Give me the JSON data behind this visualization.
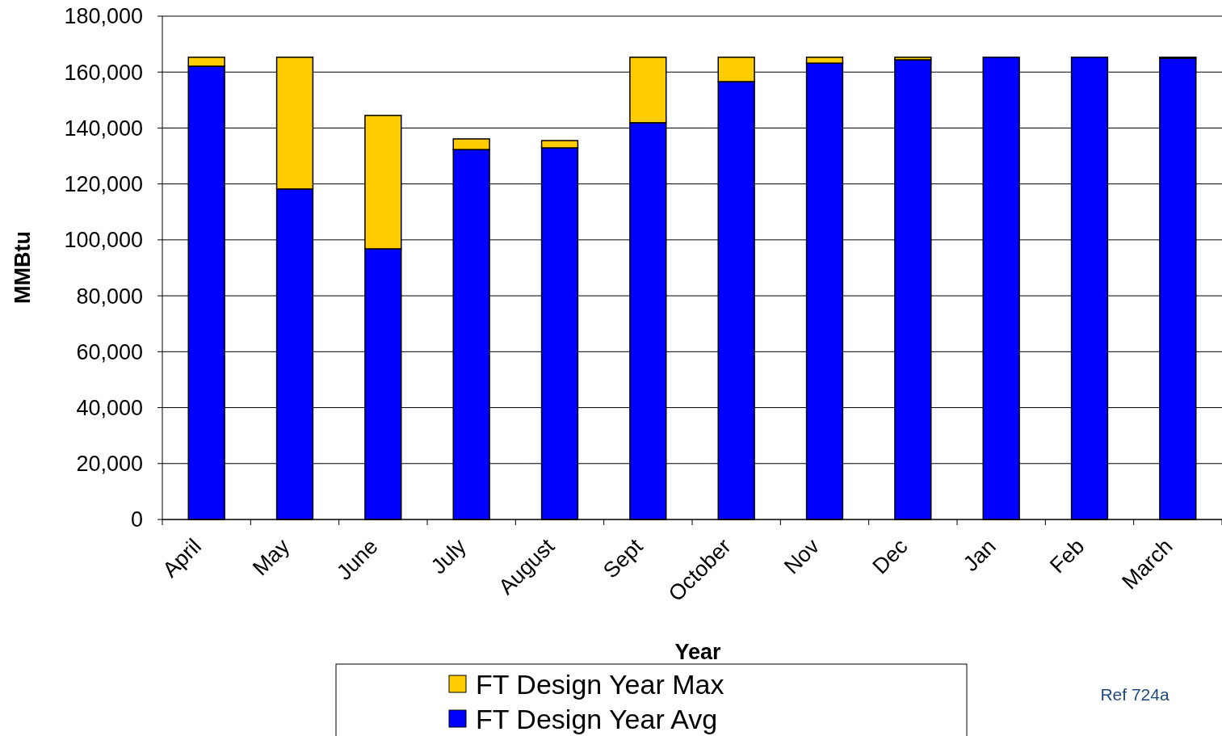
{
  "chart_data": {
    "type": "bar",
    "stacked": true,
    "xlabel": "Year",
    "ylabel": "MMBtu",
    "categories": [
      "April",
      "May",
      "June",
      "July",
      "August",
      "Sept",
      "October",
      "Nov",
      "Dec",
      "Jan",
      "Feb",
      "March"
    ],
    "series": [
      {
        "name": "FT Design Year Avg",
        "color": "#0000ff",
        "values": [
          162100,
          118200,
          96800,
          132300,
          132900,
          141900,
          156600,
          163200,
          164400,
          165300,
          165300,
          165000
        ]
      },
      {
        "name": "FT Design Year Max",
        "color": "#ffcc00",
        "values": [
          3200,
          47100,
          47700,
          3800,
          2600,
          23400,
          8700,
          2100,
          900,
          0,
          0,
          300
        ]
      }
    ],
    "ylim": [
      0,
      180000
    ],
    "yticks": [
      {
        "value": 0,
        "label": "0"
      },
      {
        "value": 20000,
        "label": "20,000"
      },
      {
        "value": 40000,
        "label": "40,000"
      },
      {
        "value": 60000,
        "label": "60,000"
      },
      {
        "value": 80000,
        "label": "80,000"
      },
      {
        "value": 100000,
        "label": "100,000"
      },
      {
        "value": 120000,
        "label": "120,000"
      },
      {
        "value": 140000,
        "label": "140,000"
      },
      {
        "value": 160000,
        "label": "160,000"
      },
      {
        "value": 180000,
        "label": "180,000"
      }
    ],
    "grid": "y",
    "legend": "bottom",
    "annotations": [
      "Ref 724a"
    ]
  }
}
